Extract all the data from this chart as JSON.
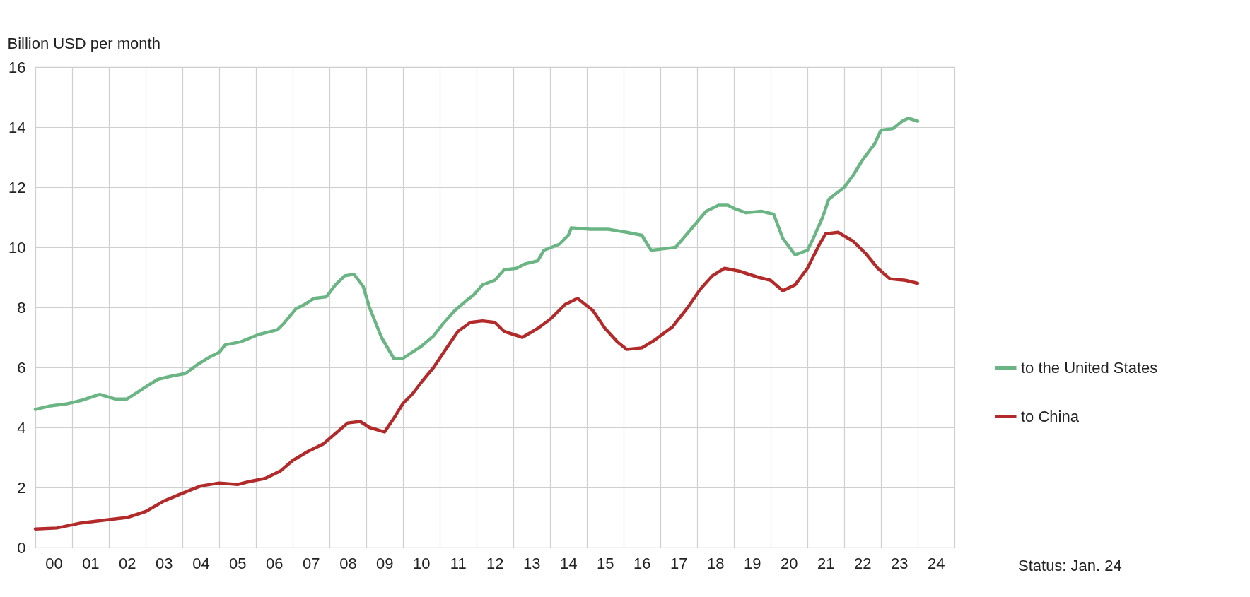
{
  "chart_data": {
    "type": "line",
    "ylabel": "Billion USD per month",
    "legend": "right",
    "grid": true,
    "line_style": "solid",
    "marker": "none",
    "xlim": [
      "2000",
      "2025"
    ],
    "xticks": [
      {
        "value": "2000",
        "label": null
      },
      {
        "value": "2001",
        "label": null
      },
      {
        "value": "2002",
        "label": null
      },
      {
        "value": "2003",
        "label": null
      },
      {
        "value": "2004",
        "label": null
      },
      {
        "value": "2005",
        "label": null
      },
      {
        "value": "2006",
        "label": null
      },
      {
        "value": "2007",
        "label": null
      },
      {
        "value": "2008",
        "label": null
      },
      {
        "value": "2009",
        "label": null
      },
      {
        "value": "2010",
        "label": null
      },
      {
        "value": "2011",
        "label": null
      },
      {
        "value": "2012",
        "label": null
      },
      {
        "value": "2013",
        "label": null
      },
      {
        "value": "2014",
        "label": null
      },
      {
        "value": "2015",
        "label": null
      },
      {
        "value": "2016",
        "label": null
      },
      {
        "value": "2017",
        "label": null
      },
      {
        "value": "2018",
        "label": null
      },
      {
        "value": "2019",
        "label": null
      },
      {
        "value": "2020",
        "label": null
      },
      {
        "value": "2021",
        "label": null
      },
      {
        "value": "2022",
        "label": null
      },
      {
        "value": "2023",
        "label": null
      },
      {
        "value": "2024",
        "label": null
      },
      {
        "value": "2025",
        "label": null
      },
      {
        "value": "2000-07",
        "label": "00"
      },
      {
        "value": "2001-07",
        "label": "01"
      },
      {
        "value": "2002-07",
        "label": "02"
      },
      {
        "value": "2003-07",
        "label": "03"
      },
      {
        "value": "2004-07",
        "label": "04"
      },
      {
        "value": "2005-07",
        "label": "05"
      },
      {
        "value": "2006-07",
        "label": "06"
      },
      {
        "value": "2007-07",
        "label": "07"
      },
      {
        "value": "2008-07",
        "label": "08"
      },
      {
        "value": "2009-07",
        "label": "09"
      },
      {
        "value": "2010-07",
        "label": "10"
      },
      {
        "value": "2011-07",
        "label": "11"
      },
      {
        "value": "2012-07",
        "label": "12"
      },
      {
        "value": "2013-07",
        "label": "13"
      },
      {
        "value": "2014-07",
        "label": "14"
      },
      {
        "value": "2015-07",
        "label": "15"
      },
      {
        "value": "2016-07",
        "label": "16"
      },
      {
        "value": "2017-07",
        "label": "17"
      },
      {
        "value": "2018-07",
        "label": "18"
      },
      {
        "value": "2019-07",
        "label": "19"
      },
      {
        "value": "2020-07",
        "label": "20"
      },
      {
        "value": "2021-07",
        "label": "21"
      },
      {
        "value": "2022-07",
        "label": "22"
      },
      {
        "value": "2023-07",
        "label": "23"
      },
      {
        "value": "2024-07",
        "label": "24"
      }
    ],
    "ylim": [
      0,
      16
    ],
    "yticks": [
      0,
      2,
      4,
      6,
      8,
      10,
      12,
      14,
      16
    ],
    "annotations": [
      "Status: Jan. 24"
    ],
    "series": [
      {
        "name": "to the United States",
        "color": "#6bb585",
        "x": [
          "2000-01",
          "2000-06",
          "2000-11",
          "2001-04",
          "2001-10",
          "2002-03",
          "2002-07",
          "2003-01",
          "2003-05",
          "2003-09",
          "2004-02",
          "2004-06",
          "2004-10",
          "2005-01",
          "2005-03",
          "2005-08",
          "2006-02",
          "2006-08",
          "2006-10",
          "2007-02",
          "2007-05",
          "2007-08",
          "2007-12",
          "2008-03",
          "2008-06",
          "2008-09",
          "2008-12",
          "2009-02",
          "2009-06",
          "2009-10",
          "2010-01",
          "2010-04",
          "2010-07",
          "2010-11",
          "2011-02",
          "2011-06",
          "2011-10",
          "2011-12",
          "2012-03",
          "2012-07",
          "2012-10",
          "2013-02",
          "2013-05",
          "2013-09",
          "2013-11",
          "2014-04",
          "2014-07",
          "2014-08",
          "2015-02",
          "2015-08",
          "2016-02",
          "2016-07",
          "2016-10",
          "2017-02",
          "2017-06",
          "2017-11",
          "2018-04",
          "2018-08",
          "2018-11",
          "2019-01",
          "2019-05",
          "2019-10",
          "2020-02",
          "2020-05",
          "2020-09",
          "2021-01",
          "2021-03",
          "2021-06",
          "2021-08",
          "2022-01",
          "2022-04",
          "2022-07",
          "2022-11",
          "2023-01",
          "2023-05",
          "2023-08",
          "2023-10",
          "2024-01"
        ],
        "values": [
          4.6,
          4.72,
          4.78,
          4.9,
          5.1,
          4.95,
          4.95,
          5.35,
          5.6,
          5.7,
          5.8,
          6.1,
          6.35,
          6.5,
          6.75,
          6.85,
          7.1,
          7.25,
          7.45,
          7.95,
          8.1,
          8.3,
          8.35,
          8.75,
          9.05,
          9.1,
          8.7,
          8.0,
          7.0,
          6.3,
          6.3,
          6.5,
          6.7,
          7.05,
          7.45,
          7.9,
          8.25,
          8.4,
          8.75,
          8.9,
          9.25,
          9.3,
          9.45,
          9.55,
          9.9,
          10.1,
          10.4,
          10.65,
          10.6,
          10.6,
          10.5,
          10.4,
          9.9,
          9.95,
          10.0,
          10.6,
          11.2,
          11.4,
          11.4,
          11.3,
          11.15,
          11.2,
          11.1,
          10.3,
          9.75,
          9.9,
          10.3,
          11.0,
          11.6,
          12.0,
          12.4,
          12.9,
          13.45,
          13.9,
          13.95,
          14.2,
          14.3,
          14.2
        ]
      },
      {
        "name": "to China",
        "color": "#b22a2a",
        "x": [
          "2000-01",
          "2000-08",
          "2001-04",
          "2001-12",
          "2002-07",
          "2003-01",
          "2003-07",
          "2004-02",
          "2004-07",
          "2005-01",
          "2005-07",
          "2005-11",
          "2006-04",
          "2006-09",
          "2007-01",
          "2007-06",
          "2007-11",
          "2008-03",
          "2008-07",
          "2008-11",
          "2009-02",
          "2009-07",
          "2009-10",
          "2010-01",
          "2010-04",
          "2010-07",
          "2010-11",
          "2011-03",
          "2011-07",
          "2011-11",
          "2012-03",
          "2012-07",
          "2012-10",
          "2013-04",
          "2013-09",
          "2014-01",
          "2014-06",
          "2014-10",
          "2015-03",
          "2015-07",
          "2015-11",
          "2016-02",
          "2016-07",
          "2016-11",
          "2017-05",
          "2017-10",
          "2018-02",
          "2018-06",
          "2018-10",
          "2019-03",
          "2019-09",
          "2020-01",
          "2020-05",
          "2020-09",
          "2021-01",
          "2021-05",
          "2021-07",
          "2021-11",
          "2022-04",
          "2022-08",
          "2022-12",
          "2023-04",
          "2023-09",
          "2024-01"
        ],
        "values": [
          0.62,
          0.65,
          0.82,
          0.92,
          1.0,
          1.2,
          1.55,
          1.85,
          2.05,
          2.15,
          2.1,
          2.2,
          2.3,
          2.55,
          2.9,
          3.2,
          3.45,
          3.8,
          4.15,
          4.2,
          4.0,
          3.85,
          4.3,
          4.8,
          5.1,
          5.5,
          6.0,
          6.6,
          7.2,
          7.5,
          7.55,
          7.5,
          7.2,
          7.0,
          7.3,
          7.6,
          8.1,
          8.3,
          7.9,
          7.3,
          6.85,
          6.6,
          6.65,
          6.9,
          7.35,
          8.0,
          8.6,
          9.05,
          9.3,
          9.2,
          9.0,
          8.9,
          8.55,
          8.75,
          9.3,
          10.1,
          10.45,
          10.5,
          10.2,
          9.8,
          9.3,
          8.95,
          8.9,
          8.8
        ]
      }
    ]
  }
}
